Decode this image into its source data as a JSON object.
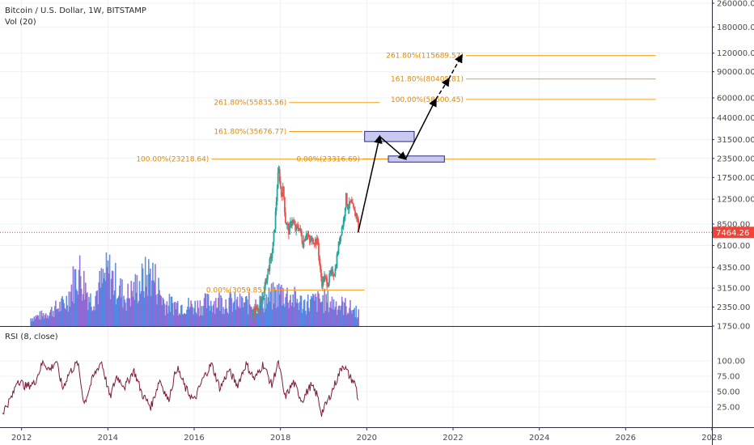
{
  "header": {
    "symbol_title": "Bitcoin / U.S. Dollar, 1W, BITSTAMP",
    "volume_label": "Vol (20)",
    "rsi_label": "RSI (8, close)"
  },
  "colors": {
    "grid": "#eef0f3",
    "fib": "#f7a01a",
    "fib_text": "#e08a00",
    "price_line": "#e53935",
    "price_badge": "#f44336",
    "candle_up": "#26a69a",
    "candle_down": "#ef5350",
    "vol_blue": "#3f7fe0",
    "vol_purple": "#8a5cd0",
    "rsi_line": "#7b1e3c",
    "box_fill": "#c9c8ef",
    "box_stroke": "#2d2a7a",
    "arrow": "#000000"
  },
  "chart_data": {
    "type": "line",
    "title": "Bitcoin / U.S. Dollar, 1W, BITSTAMP",
    "xlabel": "",
    "ylabel": "",
    "log_scale": true,
    "grid": true,
    "last_price": "7464.26",
    "x_ticks": [
      "2012",
      "2014",
      "2016",
      "2018",
      "2020",
      "2022",
      "2024",
      "2026",
      "2028"
    ],
    "y_ticks": [
      {
        "label": "260000.00",
        "value": 260000
      },
      {
        "label": "180000.00",
        "value": 180000
      },
      {
        "label": "120000.00",
        "value": 120000
      },
      {
        "label": "90000.00",
        "value": 90000
      },
      {
        "label": "60000.00",
        "value": 60000
      },
      {
        "label": "44000.00",
        "value": 44000
      },
      {
        "label": "31500.00",
        "value": 31500
      },
      {
        "label": "23500.00",
        "value": 23500
      },
      {
        "label": "17500.00",
        "value": 17500
      },
      {
        "label": "12500.00",
        "value": 12500
      },
      {
        "label": "8500.00",
        "value": 8500
      },
      {
        "label": "6100.00",
        "value": 6100
      },
      {
        "label": "4350.00",
        "value": 4350
      },
      {
        "label": "3150.00",
        "value": 3150
      },
      {
        "label": "2350.00",
        "value": 2350
      },
      {
        "label": "1750.00",
        "value": 1750
      }
    ],
    "rsi_ticks": [
      {
        "label": "100.00",
        "value": 100
      },
      {
        "label": "75.00",
        "value": 75
      },
      {
        "label": "50.00",
        "value": 50
      },
      {
        "label": "25.00",
        "value": 25
      }
    ],
    "fib_levels": [
      {
        "label": "261.80%(115689.57)",
        "value": 115689.57,
        "x_start": 2022.3,
        "x_end": 2026.7
      },
      {
        "label": "161.80%(80405.81)",
        "value": 80405.81,
        "x_start": 2022.3,
        "x_end": 2026.7
      },
      {
        "label": "100.00%(58600.45)",
        "value": 58600.45,
        "x_start": 2022.3,
        "x_end": 2026.7
      },
      {
        "label": "261.80%(55835.56)",
        "value": 55835.56,
        "x_start": 2018.2,
        "x_end": 2020.3
      },
      {
        "label": "161.80%(35676.77)",
        "value": 35676.77,
        "x_start": 2018.2,
        "x_end": 2019.9
      },
      {
        "label": "100.00%(23218.64)",
        "value": 23218.64,
        "x_start": 2016.4,
        "x_end": 2026.7
      },
      {
        "label": "0.00%(23316.69)",
        "value": 23316.69,
        "x_start": 2019.9,
        "x_end": 2020.5
      },
      {
        "label": "0.00%(3059.85)",
        "value": 3059.85,
        "x_start": 2017.7,
        "x_end": 2019.95
      }
    ],
    "zones": [
      {
        "x_start": 2019.95,
        "x_end": 2021.1,
        "y_low": 30500,
        "y_high": 35700
      },
      {
        "x_start": 2020.5,
        "x_end": 2021.8,
        "y_low": 22200,
        "y_high": 24400
      }
    ],
    "projection_path": [
      {
        "x": 2019.8,
        "y": 7464
      },
      {
        "x": 2020.3,
        "y": 33000
      },
      {
        "x": 2020.9,
        "y": 23300
      },
      {
        "x": 2021.6,
        "y": 58600
      },
      {
        "x": 2021.9,
        "y": 80405
      },
      {
        "x": 2022.2,
        "y": 115689
      }
    ],
    "price_series": [
      {
        "x": 2011.55,
        "y": 1750
      },
      {
        "x": 2017.2,
        "y": 1820
      },
      {
        "x": 2017.4,
        "y": 2250
      },
      {
        "x": 2017.55,
        "y": 2500
      },
      {
        "x": 2017.7,
        "y": 4200
      },
      {
        "x": 2017.8,
        "y": 5600
      },
      {
        "x": 2017.86,
        "y": 9000
      },
      {
        "x": 2017.92,
        "y": 17500
      },
      {
        "x": 2017.95,
        "y": 19500
      },
      {
        "x": 2018.0,
        "y": 13500
      },
      {
        "x": 2018.05,
        "y": 14500
      },
      {
        "x": 2018.1,
        "y": 9000
      },
      {
        "x": 2018.18,
        "y": 7600
      },
      {
        "x": 2018.25,
        "y": 9200
      },
      {
        "x": 2018.33,
        "y": 7800
      },
      {
        "x": 2018.42,
        "y": 8200
      },
      {
        "x": 2018.5,
        "y": 6300
      },
      {
        "x": 2018.58,
        "y": 7500
      },
      {
        "x": 2018.66,
        "y": 6500
      },
      {
        "x": 2018.75,
        "y": 6700
      },
      {
        "x": 2018.85,
        "y": 6400
      },
      {
        "x": 2018.9,
        "y": 4200
      },
      {
        "x": 2018.95,
        "y": 3400
      },
      {
        "x": 2019.0,
        "y": 3700
      },
      {
        "x": 2019.08,
        "y": 3450
      },
      {
        "x": 2019.15,
        "y": 3900
      },
      {
        "x": 2019.25,
        "y": 4100
      },
      {
        "x": 2019.3,
        "y": 5300
      },
      {
        "x": 2019.38,
        "y": 7500
      },
      {
        "x": 2019.45,
        "y": 9000
      },
      {
        "x": 2019.5,
        "y": 13000
      },
      {
        "x": 2019.55,
        "y": 11000
      },
      {
        "x": 2019.62,
        "y": 11800
      },
      {
        "x": 2019.7,
        "y": 10000
      },
      {
        "x": 2019.76,
        "y": 9800
      },
      {
        "x": 2019.8,
        "y": 7464
      }
    ],
    "rsi_series": [
      {
        "x": 2011.55,
        "y": 15
      },
      {
        "x": 2011.8,
        "y": 45
      },
      {
        "x": 2011.9,
        "y": 70
      },
      {
        "x": 2012.1,
        "y": 58
      },
      {
        "x": 2012.3,
        "y": 64
      },
      {
        "x": 2012.5,
        "y": 99
      },
      {
        "x": 2012.65,
        "y": 85
      },
      {
        "x": 2012.8,
        "y": 100
      },
      {
        "x": 2012.95,
        "y": 55
      },
      {
        "x": 2013.1,
        "y": 80
      },
      {
        "x": 2013.3,
        "y": 97
      },
      {
        "x": 2013.45,
        "y": 30
      },
      {
        "x": 2013.65,
        "y": 72
      },
      {
        "x": 2013.85,
        "y": 100
      },
      {
        "x": 2014.05,
        "y": 40
      },
      {
        "x": 2014.2,
        "y": 75
      },
      {
        "x": 2014.4,
        "y": 58
      },
      {
        "x": 2014.6,
        "y": 85
      },
      {
        "x": 2014.8,
        "y": 45
      },
      {
        "x": 2015.0,
        "y": 25
      },
      {
        "x": 2015.2,
        "y": 70
      },
      {
        "x": 2015.4,
        "y": 35
      },
      {
        "x": 2015.6,
        "y": 90
      },
      {
        "x": 2015.8,
        "y": 55
      },
      {
        "x": 2016.0,
        "y": 35
      },
      {
        "x": 2016.2,
        "y": 70
      },
      {
        "x": 2016.4,
        "y": 95
      },
      {
        "x": 2016.6,
        "y": 55
      },
      {
        "x": 2016.8,
        "y": 85
      },
      {
        "x": 2017.0,
        "y": 60
      },
      {
        "x": 2017.2,
        "y": 95
      },
      {
        "x": 2017.4,
        "y": 70
      },
      {
        "x": 2017.6,
        "y": 95
      },
      {
        "x": 2017.8,
        "y": 60
      },
      {
        "x": 2017.95,
        "y": 100
      },
      {
        "x": 2018.1,
        "y": 40
      },
      {
        "x": 2018.3,
        "y": 65
      },
      {
        "x": 2018.5,
        "y": 35
      },
      {
        "x": 2018.7,
        "y": 60
      },
      {
        "x": 2018.85,
        "y": 45
      },
      {
        "x": 2018.95,
        "y": 15
      },
      {
        "x": 2019.1,
        "y": 35
      },
      {
        "x": 2019.25,
        "y": 60
      },
      {
        "x": 2019.45,
        "y": 95
      },
      {
        "x": 2019.6,
        "y": 75
      },
      {
        "x": 2019.75,
        "y": 60
      },
      {
        "x": 2019.8,
        "y": 34
      }
    ],
    "volume_series": [
      {
        "x": 2011.55,
        "v": 0.02
      },
      {
        "x": 2012.0,
        "v": 0.1
      },
      {
        "x": 2012.5,
        "v": 0.2
      },
      {
        "x": 2013.0,
        "v": 0.4
      },
      {
        "x": 2013.3,
        "v": 1.0
      },
      {
        "x": 2013.6,
        "v": 0.45
      },
      {
        "x": 2014.0,
        "v": 0.95
      },
      {
        "x": 2014.4,
        "v": 0.5
      },
      {
        "x": 2015.0,
        "v": 0.95
      },
      {
        "x": 2015.3,
        "v": 0.4
      },
      {
        "x": 2016.0,
        "v": 0.35
      },
      {
        "x": 2016.5,
        "v": 0.45
      },
      {
        "x": 2017.0,
        "v": 0.4
      },
      {
        "x": 2017.5,
        "v": 0.4
      },
      {
        "x": 2018.0,
        "v": 0.6
      },
      {
        "x": 2018.5,
        "v": 0.4
      },
      {
        "x": 2019.0,
        "v": 0.45
      },
      {
        "x": 2019.5,
        "v": 0.35
      },
      {
        "x": 2019.8,
        "v": 0.25
      }
    ]
  }
}
